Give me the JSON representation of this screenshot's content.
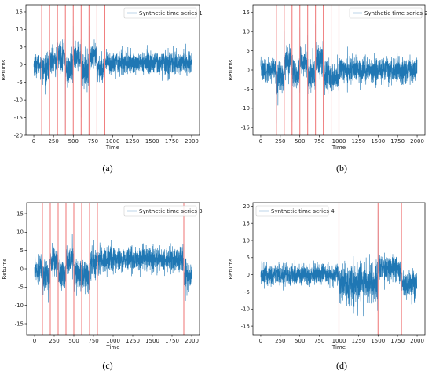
{
  "chart_data": [
    {
      "type": "line",
      "panel_label": "(a)",
      "xlabel": "Time",
      "ylabel": "Returns",
      "xlim": [
        -100,
        2100
      ],
      "ylim": [
        -20,
        17
      ],
      "xticks": [
        0,
        250,
        500,
        750,
        1000,
        1250,
        1500,
        1750,
        2000
      ],
      "yticks": [
        -20,
        -15,
        -10,
        -5,
        0,
        5,
        10,
        15
      ],
      "legend_position": "top-right",
      "series": [
        {
          "name": "Synthetic time series 1",
          "color": "#1f77b4",
          "n": 2000,
          "segments": [
            {
              "x0": 0,
              "x1": 100,
              "mean": 0,
              "sd": 1.5
            },
            {
              "x0": 100,
              "x1": 200,
              "mean": -1.5,
              "sd": 2.0
            },
            {
              "x0": 200,
              "x1": 300,
              "mean": 1,
              "sd": 2.2
            },
            {
              "x0": 300,
              "x1": 400,
              "mean": 2.5,
              "sd": 2.0
            },
            {
              "x0": 400,
              "x1": 500,
              "mean": -1.5,
              "sd": 2.2
            },
            {
              "x0": 500,
              "x1": 600,
              "mean": 2.5,
              "sd": 2.0
            },
            {
              "x0": 600,
              "x1": 700,
              "mean": -1.5,
              "sd": 2.2
            },
            {
              "x0": 700,
              "x1": 800,
              "mean": 2,
              "sd": 2.0
            },
            {
              "x0": 800,
              "x1": 900,
              "mean": -1,
              "sd": 2.0
            },
            {
              "x0": 900,
              "x1": 2000,
              "mean": 0.5,
              "sd": 1.6
            }
          ],
          "spikes": [
            [
              100,
              -13
            ],
            [
              200,
              -16.5
            ],
            [
              300,
              10
            ],
            [
              400,
              -18.5
            ],
            [
              500,
              11
            ],
            [
              600,
              -15
            ],
            [
              700,
              11
            ],
            [
              800,
              -13
            ],
            [
              900,
              -10
            ]
          ]
        }
      ],
      "vlines": [
        100,
        200,
        300,
        400,
        500,
        600,
        700,
        800,
        900
      ]
    },
    {
      "type": "line",
      "panel_label": "(b)",
      "xlabel": "Time",
      "ylabel": "Returns",
      "xlim": [
        -100,
        2100
      ],
      "ylim": [
        -17,
        17
      ],
      "xticks": [
        0,
        250,
        500,
        750,
        1000,
        1250,
        1500,
        1750,
        2000
      ],
      "yticks": [
        -15,
        -10,
        -5,
        0,
        5,
        10,
        15
      ],
      "legend_position": "top-right",
      "series": [
        {
          "name": "Synthetic time series 2",
          "color": "#1f77b4",
          "n": 2000,
          "segments": [
            {
              "x0": 0,
              "x1": 200,
              "mean": 0,
              "sd": 1.5
            },
            {
              "x0": 200,
              "x1": 300,
              "mean": -1.5,
              "sd": 2.2
            },
            {
              "x0": 300,
              "x1": 400,
              "mean": 2.5,
              "sd": 2.0
            },
            {
              "x0": 400,
              "x1": 500,
              "mean": -1.5,
              "sd": 2.2
            },
            {
              "x0": 500,
              "x1": 600,
              "mean": 2,
              "sd": 2.0
            },
            {
              "x0": 600,
              "x1": 700,
              "mean": -1.5,
              "sd": 2.2
            },
            {
              "x0": 700,
              "x1": 800,
              "mean": 2.5,
              "sd": 2.0
            },
            {
              "x0": 800,
              "x1": 900,
              "mean": -1.5,
              "sd": 2.2
            },
            {
              "x0": 900,
              "x1": 1000,
              "mean": -2,
              "sd": 2.0
            },
            {
              "x0": 1000,
              "x1": 2000,
              "mean": 0,
              "sd": 1.6
            }
          ],
          "spikes": [
            [
              200,
              -14
            ],
            [
              300,
              10
            ],
            [
              400,
              -13.5
            ],
            [
              500,
              11
            ],
            [
              600,
              -14
            ],
            [
              700,
              12
            ],
            [
              800,
              -13.5
            ],
            [
              900,
              -15
            ],
            [
              1000,
              14
            ]
          ]
        }
      ],
      "vlines": [
        200,
        300,
        400,
        500,
        600,
        700,
        800,
        900,
        1000
      ]
    },
    {
      "type": "line",
      "panel_label": "(c)",
      "xlabel": "Time",
      "ylabel": "Returns",
      "xlim": [
        -100,
        2100
      ],
      "ylim": [
        -18,
        18
      ],
      "xticks": [
        0,
        250,
        500,
        750,
        1000,
        1250,
        1500,
        1750,
        2000
      ],
      "yticks": [
        -15,
        -10,
        -5,
        0,
        5,
        10,
        15
      ],
      "legend_position": "top-right",
      "series": [
        {
          "name": "Synthetic time series 3",
          "color": "#1f77b4",
          "n": 2000,
          "segments": [
            {
              "x0": 0,
              "x1": 100,
              "mean": 0,
              "sd": 1.8
            },
            {
              "x0": 100,
              "x1": 200,
              "mean": -2,
              "sd": 2.2
            },
            {
              "x0": 200,
              "x1": 300,
              "mean": 2,
              "sd": 2.0
            },
            {
              "x0": 300,
              "x1": 400,
              "mean": -1.5,
              "sd": 2.2
            },
            {
              "x0": 400,
              "x1": 500,
              "mean": 2.5,
              "sd": 2.0
            },
            {
              "x0": 500,
              "x1": 600,
              "mean": -1.5,
              "sd": 2.2
            },
            {
              "x0": 600,
              "x1": 700,
              "mean": -2,
              "sd": 2.2
            },
            {
              "x0": 700,
              "x1": 800,
              "mean": 1.5,
              "sd": 2.0
            },
            {
              "x0": 800,
              "x1": 1900,
              "mean": 2.5,
              "sd": 1.6
            },
            {
              "x0": 1900,
              "x1": 2000,
              "mean": -2.5,
              "sd": 2.4
            }
          ],
          "spikes": [
            [
              100,
              -15
            ],
            [
              200,
              13
            ],
            [
              300,
              -12
            ],
            [
              400,
              14.5
            ],
            [
              500,
              -17
            ],
            [
              600,
              -15
            ],
            [
              700,
              12
            ],
            [
              800,
              16
            ],
            [
              1900,
              -12
            ]
          ]
        }
      ],
      "vlines": [
        100,
        200,
        300,
        400,
        500,
        600,
        700,
        800,
        1900
      ]
    },
    {
      "type": "line",
      "panel_label": "(d)",
      "xlabel": "Time",
      "ylabel": "Returns",
      "xlim": [
        -100,
        2100
      ],
      "ylim": [
        -17.5,
        21
      ],
      "xticks": [
        0,
        250,
        500,
        750,
        1000,
        1250,
        1500,
        1750,
        2000
      ],
      "yticks": [
        -15,
        -10,
        -5,
        0,
        5,
        10,
        15,
        20
      ],
      "legend_position": "top-left",
      "series": [
        {
          "name": "Synthetic time series 4",
          "color": "#1f77b4",
          "n": 2000,
          "segments": [
            {
              "x0": 0,
              "x1": 1000,
              "mean": 0,
              "sd": 1.6
            },
            {
              "x0": 1000,
              "x1": 1500,
              "mean": -2.5,
              "sd": 3.0
            },
            {
              "x0": 1500,
              "x1": 1800,
              "mean": 2,
              "sd": 2.0
            },
            {
              "x0": 1800,
              "x1": 2000,
              "mean": -2.5,
              "sd": 2.0
            }
          ],
          "spikes": [
            [
              1000,
              -15.5
            ],
            [
              1500,
              19
            ],
            [
              1800,
              -14
            ]
          ]
        }
      ],
      "vlines": [
        1000,
        1500,
        1800
      ]
    }
  ]
}
